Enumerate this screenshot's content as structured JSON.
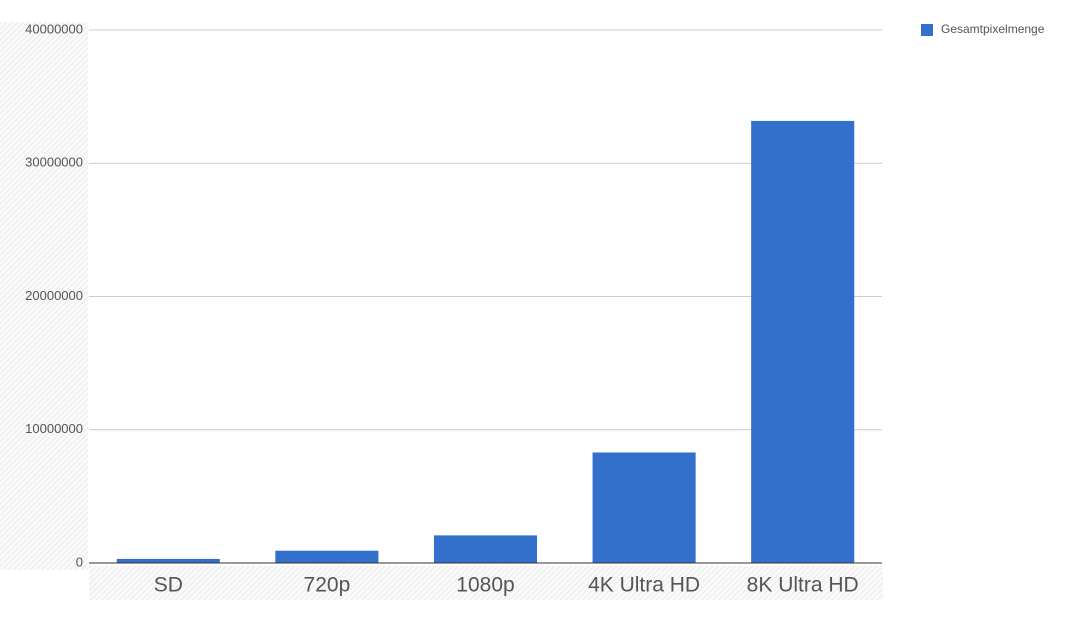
{
  "chart_data": {
    "type": "bar",
    "categories": [
      "SD",
      "720p",
      "1080p",
      "4K Ultra HD",
      "8K Ultra HD"
    ],
    "series": [
      {
        "name": "Gesamtpixelmenge",
        "color": "#3370cc",
        "values": [
          307200,
          921600,
          2073600,
          8294400,
          33177600
        ]
      }
    ],
    "ylim": [
      0,
      40000000
    ],
    "yticks": [
      0,
      10000000,
      20000000,
      30000000,
      40000000
    ],
    "grid": true,
    "legend": "top-right"
  }
}
